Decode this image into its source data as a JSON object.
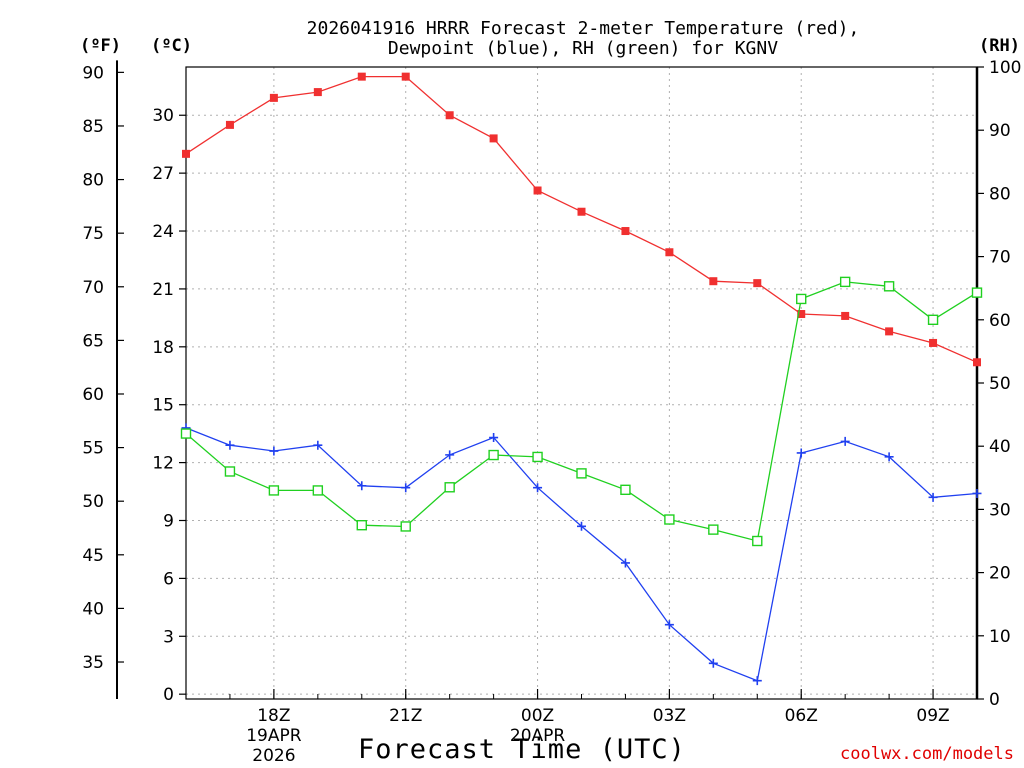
{
  "header": {
    "title_line1": "2026041916 HRRR Forecast 2-meter Temperature (red),",
    "title_line2": "Dewpoint (blue), RH (green) for KGNV"
  },
  "units": {
    "f": "(ºF)",
    "c": "(ºC)",
    "rh": "(RH)"
  },
  "footer": {
    "xlabel": "Forecast Time (UTC)",
    "credit": "coolwx.com/models"
  },
  "colors": {
    "temp": "#f03030",
    "dewpoint": "#2040f0",
    "rh": "#20d020",
    "grid": "#b0b0b0"
  },
  "chart_data": {
    "type": "line",
    "title": "2026041916 HRRR Forecast 2-meter Temperature (red), Dewpoint (blue), RH (green) for KGNV",
    "xlabel": "Forecast Time (UTC)",
    "x_hours": [
      16,
      17,
      18,
      19,
      20,
      21,
      22,
      23,
      24,
      25,
      26,
      27,
      28,
      29,
      30,
      31,
      32,
      33,
      34
    ],
    "xlim": [
      16,
      34
    ],
    "x_ticks": [
      {
        "hour": 18,
        "label": "18Z",
        "sub": [
          "19APR",
          "2026"
        ]
      },
      {
        "hour": 21,
        "label": "21Z",
        "sub": []
      },
      {
        "hour": 24,
        "label": "00Z",
        "sub": [
          "20APR"
        ]
      },
      {
        "hour": 27,
        "label": "03Z",
        "sub": []
      },
      {
        "hour": 30,
        "label": "06Z",
        "sub": []
      },
      {
        "hour": 33,
        "label": "09Z",
        "sub": []
      }
    ],
    "x_grid_hours": [
      18,
      21,
      24,
      27,
      30,
      33
    ],
    "ylim_c": [
      -0.25,
      32.5
    ],
    "y_ticks_c": [
      0,
      3,
      6,
      9,
      12,
      15,
      18,
      21,
      24,
      27,
      30
    ],
    "y_ticks_f": [
      35,
      40,
      45,
      50,
      55,
      60,
      65,
      70,
      75,
      80,
      85,
      90
    ],
    "ylim_rh": [
      0,
      100
    ],
    "y_ticks_rh": [
      0,
      10,
      20,
      30,
      40,
      50,
      60,
      70,
      80,
      90,
      100
    ],
    "series": [
      {
        "name": "Temperature",
        "unit": "C",
        "color": "#f03030",
        "marker": "filled-square",
        "values": [
          28.0,
          29.5,
          30.9,
          31.2,
          32.0,
          32.0,
          30.0,
          28.8,
          26.1,
          25.0,
          24.0,
          22.9,
          21.4,
          21.3,
          19.7,
          19.6,
          18.8,
          18.2,
          17.2
        ]
      },
      {
        "name": "Dewpoint",
        "unit": "C",
        "color": "#2040f0",
        "marker": "plus",
        "values": [
          13.8,
          12.9,
          12.6,
          12.9,
          10.8,
          10.7,
          12.4,
          13.3,
          10.7,
          8.7,
          6.8,
          3.6,
          1.6,
          0.7,
          12.5,
          13.1,
          12.3,
          10.2,
          10.4
        ]
      },
      {
        "name": "RH",
        "unit": "%",
        "color": "#20d020",
        "marker": "open-square",
        "values": [
          42,
          36,
          33,
          33,
          27.5,
          27.3,
          33.5,
          38.6,
          38.3,
          35.7,
          33.1,
          28.4,
          26.8,
          25.0,
          63.3,
          66.0,
          65.3,
          60.0,
          64.3
        ]
      }
    ]
  }
}
